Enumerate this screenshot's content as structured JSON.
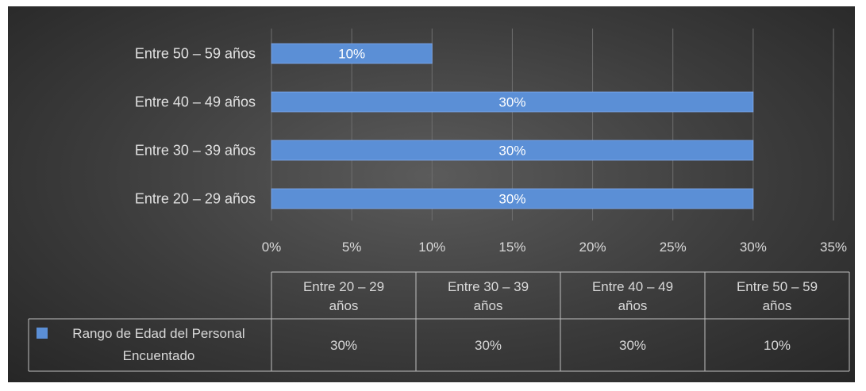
{
  "chart_data": {
    "type": "bar",
    "orientation": "horizontal",
    "categories": [
      "Entre 20 – 29 años",
      "Entre 30 – 39 años",
      "Entre 40 – 49 años",
      "Entre 50 – 59 años"
    ],
    "series": [
      {
        "name": "Rango de Edad del Personal Encuentado",
        "values": [
          30,
          30,
          30,
          10
        ],
        "color": "#5b8fd6"
      }
    ],
    "data_labels": [
      "30%",
      "30%",
      "30%",
      "10%"
    ],
    "x_ticks": [
      "0%",
      "5%",
      "10%",
      "15%",
      "20%",
      "25%",
      "30%",
      "35%"
    ],
    "xlim": [
      0,
      35
    ],
    "grid": "vertical",
    "legend": "data-table",
    "data_table": {
      "headers": [
        [
          "Entre 20 – 29",
          "años"
        ],
        [
          "Entre 30 – 39",
          "años"
        ],
        [
          "Entre 40 – 49",
          "años"
        ],
        [
          "Entre 50 – 59",
          "años"
        ]
      ],
      "series_label": [
        "Rango de Edad del Personal",
        "Encuentado"
      ],
      "values": [
        "30%",
        "30%",
        "30%",
        "10%"
      ]
    }
  }
}
